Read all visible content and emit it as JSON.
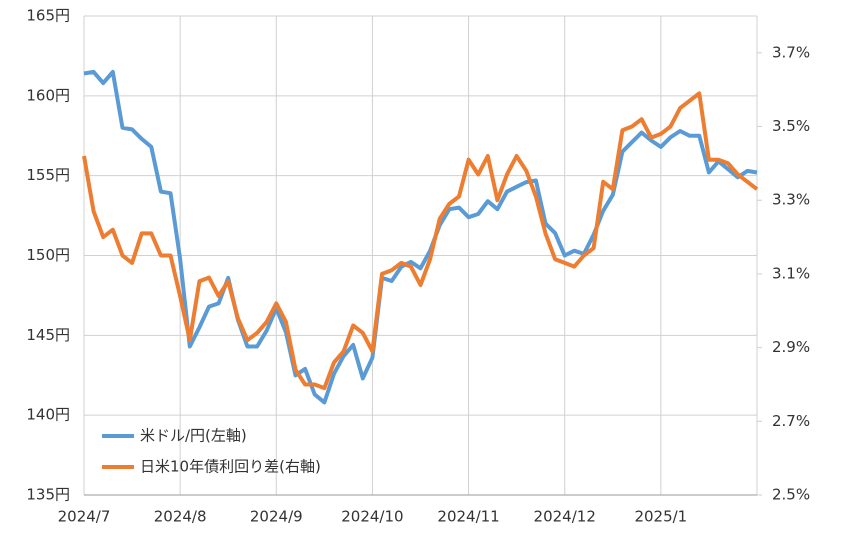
{
  "chart_data": {
    "type": "line",
    "categories": [
      "2024/7",
      null,
      null,
      null,
      null,
      null,
      null,
      null,
      null,
      null,
      "2024/8",
      null,
      null,
      null,
      null,
      null,
      null,
      null,
      null,
      null,
      "2024/9",
      null,
      null,
      null,
      null,
      null,
      null,
      null,
      null,
      null,
      "2024/10",
      null,
      null,
      null,
      null,
      null,
      null,
      null,
      null,
      null,
      "2024/11",
      null,
      null,
      null,
      null,
      null,
      null,
      null,
      null,
      null,
      "2024/12",
      null,
      null,
      null,
      null,
      null,
      null,
      null,
      null,
      null,
      "2025/1",
      null,
      null,
      null,
      null,
      null,
      null,
      null,
      null,
      null,
      null
    ],
    "series": [
      {
        "name": "米ドル/円(左軸)",
        "color": "#5b9bd5",
        "axis": "y",
        "values": [
          161.4,
          161.5,
          160.8,
          161.5,
          158.0,
          157.9,
          157.3,
          156.8,
          154.0,
          153.9,
          149.8,
          144.3,
          145.5,
          146.8,
          147.0,
          148.6,
          146.0,
          144.3,
          144.3,
          145.3,
          146.7,
          145.2,
          142.5,
          142.9,
          141.3,
          140.8,
          142.6,
          143.7,
          144.4,
          142.3,
          143.6,
          148.6,
          148.4,
          149.3,
          149.6,
          149.2,
          150.3,
          151.9,
          152.9,
          153.0,
          152.4,
          152.6,
          153.4,
          152.9,
          154.0,
          154.3,
          154.6,
          154.7,
          152.0,
          151.4,
          150.0,
          150.3,
          150.1,
          151.3,
          152.8,
          153.8,
          156.5,
          157.1,
          157.7,
          157.2,
          156.8,
          157.4,
          157.8,
          157.5,
          157.5,
          155.2,
          155.9,
          155.4,
          154.9,
          155.3,
          155.2
        ]
      },
      {
        "name": "日米10年債利回り差(右軸)",
        "color": "#ed7d31",
        "axis": "y2",
        "values": [
          3.42,
          3.27,
          3.2,
          3.22,
          3.15,
          3.13,
          3.21,
          3.21,
          3.15,
          3.15,
          3.04,
          2.92,
          3.08,
          3.09,
          3.04,
          3.08,
          2.98,
          2.92,
          2.94,
          2.97,
          3.02,
          2.97,
          2.84,
          2.8,
          2.8,
          2.79,
          2.86,
          2.89,
          2.96,
          2.94,
          2.89,
          3.1,
          3.11,
          3.13,
          3.12,
          3.07,
          3.14,
          3.25,
          3.29,
          3.31,
          3.41,
          3.37,
          3.42,
          3.3,
          3.37,
          3.42,
          3.38,
          3.31,
          3.21,
          3.14,
          3.13,
          3.12,
          3.15,
          3.17,
          3.35,
          3.33,
          3.49,
          3.5,
          3.52,
          3.47,
          3.48,
          3.5,
          3.55,
          3.57,
          3.59,
          3.41,
          3.41,
          3.4,
          3.37,
          3.35,
          3.33
        ]
      }
    ],
    "ylim": [
      135,
      165
    ],
    "yticks": [
      {
        "value": 135,
        "label": "135円"
      },
      {
        "value": 140,
        "label": "140円"
      },
      {
        "value": 145,
        "label": "145円"
      },
      {
        "value": 150,
        "label": "150円"
      },
      {
        "value": 155,
        "label": "155円"
      },
      {
        "value": 160,
        "label": "160円"
      },
      {
        "value": 165,
        "label": "165円"
      }
    ],
    "y2lim": [
      2.5,
      3.8
    ],
    "y2ticks": [
      {
        "value": 2.5,
        "label": "2.5%"
      },
      {
        "value": 2.7,
        "label": "2.7%"
      },
      {
        "value": 2.9,
        "label": "2.9%"
      },
      {
        "value": 3.1,
        "label": "3.1%"
      },
      {
        "value": 3.3,
        "label": "3.3%"
      },
      {
        "value": 3.5,
        "label": "3.5%"
      },
      {
        "value": 3.7,
        "label": "3.7%"
      }
    ],
    "grid": true,
    "legend": "lower left"
  }
}
